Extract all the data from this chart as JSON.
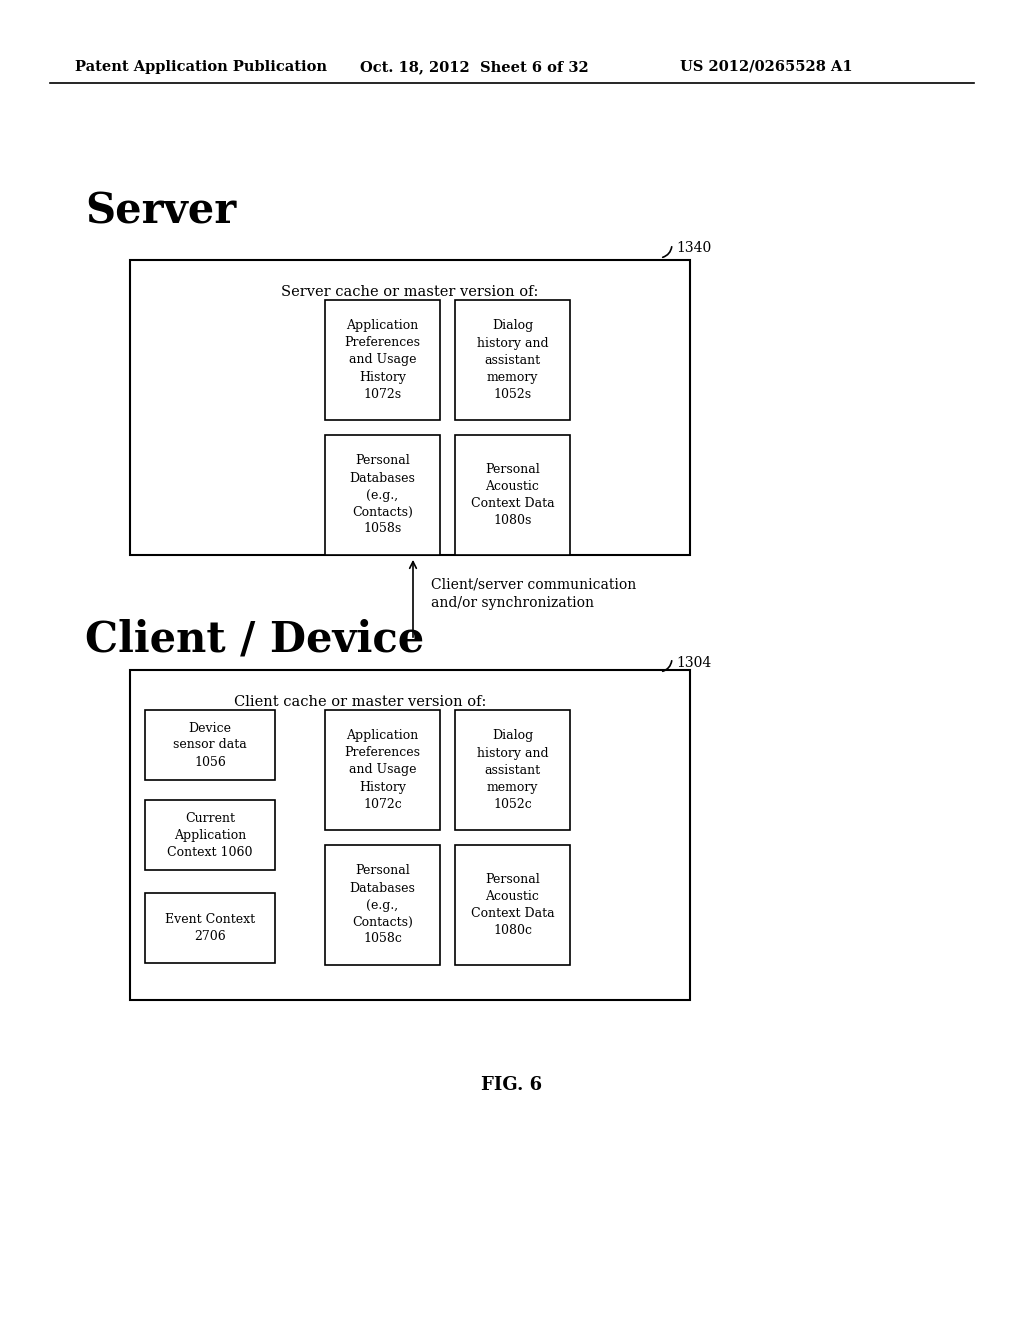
{
  "bg_color": "#ffffff",
  "header_left": "Patent Application Publication",
  "header_mid": "Oct. 18, 2012  Sheet 6 of 32",
  "header_right": "US 2012/0265528 A1",
  "server_label": "Server",
  "server_ref": "1340",
  "server_cache_text": "Server cache or master version of:",
  "server_box1_text": "Application\nPreferences\nand Usage\nHistory\n1072s",
  "server_box2_text": "Dialog\nhistory and\nassistant\nmemory\n1052s",
  "server_box3_text": "Personal\nDatabases\n(e.g.,\nContacts)\n1058s",
  "server_box4_text": "Personal\nAcoustic\nContext Data\n1080s",
  "arrow_label_line1": "Client/server communication",
  "arrow_label_line2": "and/or synchronization",
  "client_label": "Client / Device",
  "client_ref": "1304",
  "client_cache_text": "Client cache or master version of:",
  "client_left_box1_text": "Device\nsensor data\n1056",
  "client_left_box2_text": "Current\nApplication\nContext 1060",
  "client_left_box3_text": "Event Context\n2706",
  "client_box1_text": "Application\nPreferences\nand Usage\nHistory\n1072c",
  "client_box2_text": "Dialog\nhistory and\nassistant\nmemory\n1052c",
  "client_box3_text": "Personal\nDatabases\n(e.g.,\nContacts)\n1058c",
  "client_box4_text": "Personal\nAcoustic\nContext Data\n1080c",
  "fig_label": "FIG. 6"
}
